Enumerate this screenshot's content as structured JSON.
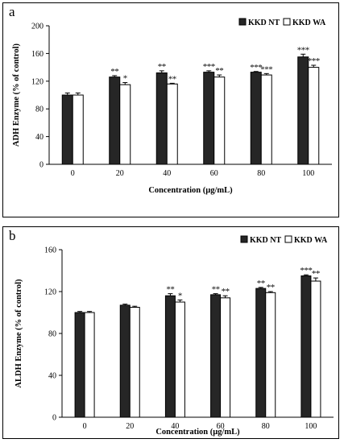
{
  "panels": [
    {
      "letter": "a",
      "chart_data": {
        "type": "bar",
        "categories": [
          "0",
          "20",
          "40",
          "60",
          "80",
          "100"
        ],
        "series": [
          {
            "name": "KKD NT",
            "values": [
              100,
              126,
              132,
              133,
              133,
              155
            ],
            "errors": [
              3,
              2,
              3,
              2,
              1,
              4
            ],
            "sig": [
              "",
              "**",
              "**",
              "***",
              "***",
              "***"
            ]
          },
          {
            "name": "KKD WA",
            "values": [
              100,
              115,
              116,
              126,
              129,
              140
            ],
            "errors": [
              3,
              3,
              1,
              3,
              2,
              3
            ],
            "sig": [
              "",
              "*",
              "**",
              "**",
              "***",
              "***"
            ]
          }
        ],
        "xlabel": "Concentration (µg/mL)",
        "ylabel": "ADH Enzyme (% of control)",
        "ylim": [
          0,
          200
        ],
        "yticks": [
          "0",
          "40",
          "80",
          "120",
          "160",
          "200"
        ],
        "grid": false,
        "legend": "top-right"
      }
    },
    {
      "letter": "b",
      "chart_data": {
        "type": "bar",
        "categories": [
          "0",
          "20",
          "40",
          "60",
          "80",
          "100"
        ],
        "series": [
          {
            "name": "KKD NT",
            "values": [
              100,
              107,
              116,
              117,
              123,
              135
            ],
            "errors": [
              1,
              1,
              2,
              1,
              1,
              1
            ],
            "sig": [
              "",
              "",
              "**",
              "**",
              "**",
              "***"
            ]
          },
          {
            "name": "KKD WA",
            "values": [
              100,
              105,
              110,
              114,
              119,
              130
            ],
            "errors": [
              1,
              1,
              2,
              2,
              1,
              3
            ],
            "sig": [
              "",
              "",
              "*",
              "**",
              "**",
              "**"
            ]
          }
        ],
        "xlabel": "Concentration (µg/mL)",
        "ylabel": "ALDH Enzyme (% of control)",
        "ylim": [
          0,
          160
        ],
        "yticks": [
          "0",
          "40",
          "80",
          "120",
          "160"
        ],
        "grid": false,
        "legend": "top-right"
      }
    }
  ],
  "colors": {
    "nt": "#262626",
    "wa": "#ffffff",
    "stroke": "#000000"
  }
}
